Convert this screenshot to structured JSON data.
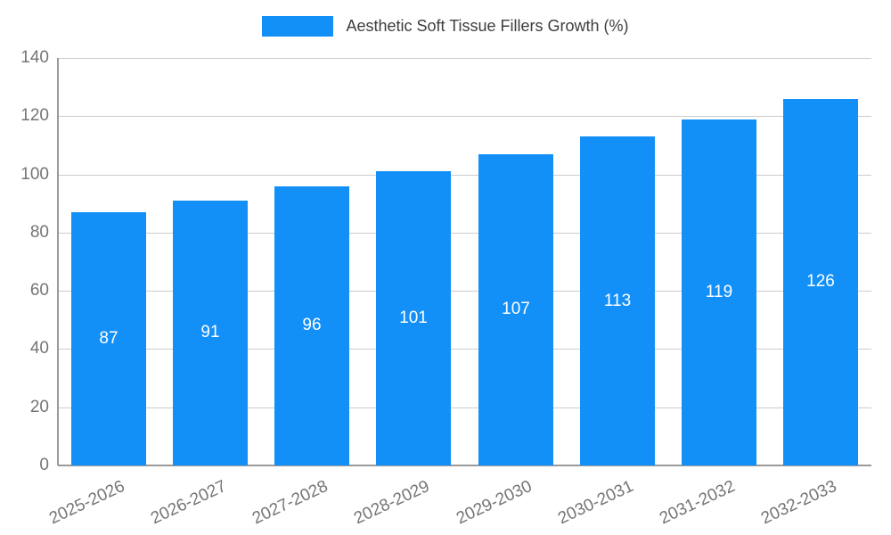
{
  "legend": {
    "label": "Aesthetic Soft Tissue Fillers Growth (%)"
  },
  "colors": {
    "bar": "#1290f8",
    "grid": "#cccccc",
    "axis": "#9a9a9a",
    "tick_text": "#757575",
    "value_label_text": "#ffffff",
    "legend_text": "#3d3d3d",
    "background": "#ffffff"
  },
  "chart_data": {
    "type": "bar",
    "title": "Aesthetic Soft Tissue Fillers Growth (%)",
    "categories": [
      "2025-2026",
      "2026-2027",
      "2027-2028",
      "2028-2029",
      "2029-2030",
      "2030-2031",
      "2031-2032",
      "2032-2033"
    ],
    "values": [
      87,
      91,
      96,
      101,
      107,
      113,
      119,
      126
    ],
    "xlabel": "",
    "ylabel": "",
    "ylim": [
      0,
      140
    ],
    "yticks": [
      0,
      20,
      40,
      60,
      80,
      100,
      120,
      140
    ],
    "grid": true,
    "legend_position": "top",
    "value_labels": "inside-middle"
  }
}
